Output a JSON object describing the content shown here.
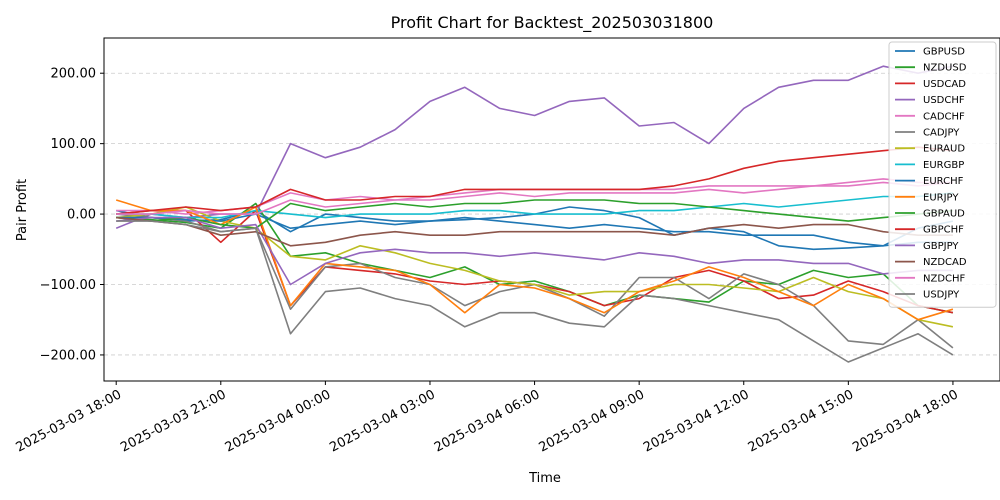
{
  "chart_data": {
    "type": "line",
    "title": "Profit Chart for Backtest_202503031800",
    "xlabel": "Time",
    "ylabel": "Pair Profit",
    "ylim": [
      -237,
      250
    ],
    "yticks": [
      -200,
      -100,
      0,
      100,
      200
    ],
    "ytick_labels": [
      "−200.00",
      "−100.00",
      "0.00",
      "100.00",
      "200.00"
    ],
    "xlim": [
      -0.35,
      25.35
    ],
    "xticks": [
      0,
      3,
      6,
      9,
      12,
      15,
      18,
      21,
      24
    ],
    "xtick_labels": [
      "2025-03-03 18:00",
      "2025-03-03 21:00",
      "2025-03-04 00:00",
      "2025-03-04 03:00",
      "2025-03-04 06:00",
      "2025-03-04 09:00",
      "2025-03-04 12:00",
      "2025-03-04 15:00",
      "2025-03-04 18:00"
    ],
    "x_unit": "hours since 2025-03-03 18:00",
    "grid": "y-dashed",
    "legend_position": "top-right",
    "x": [
      0,
      1,
      2,
      3,
      4,
      5,
      6,
      7,
      8,
      9,
      10,
      11,
      12,
      13,
      14,
      15,
      16,
      17,
      18,
      19,
      20,
      21,
      22,
      23,
      24
    ],
    "series": [
      {
        "name": "GBPUSD",
        "color": "#1f77b4",
        "values": [
          5,
          -5,
          -10,
          -8,
          5,
          -25,
          0,
          -5,
          -10,
          -10,
          -8,
          -5,
          0,
          10,
          5,
          -5,
          -30,
          -20,
          -25,
          -45,
          -50,
          -48,
          -45,
          -20,
          -10
        ]
      },
      {
        "name": "NZDUSD",
        "color": "#2ca02c",
        "values": [
          -5,
          -8,
          -12,
          -20,
          15,
          -60,
          -55,
          -70,
          -80,
          -90,
          -75,
          -100,
          -95,
          -110,
          -130,
          -115,
          -120,
          -125,
          -95,
          -100,
          -80,
          -90,
          -85,
          -130,
          -140
        ]
      },
      {
        "name": "USDCAD",
        "color": "#d62728",
        "values": [
          0,
          5,
          5,
          -40,
          5,
          -130,
          -75,
          -80,
          -85,
          -95,
          -100,
          -95,
          -100,
          -110,
          -130,
          -120,
          -90,
          -80,
          -95,
          -120,
          -115,
          -95,
          -110,
          -130,
          -140
        ]
      },
      {
        "name": "USDCHF",
        "color": "#9467bd",
        "values": [
          -20,
          0,
          -5,
          0,
          0,
          100,
          80,
          95,
          120,
          160,
          180,
          150,
          140,
          160,
          165,
          125,
          130,
          100,
          150,
          180,
          190,
          190,
          210,
          200,
          210
        ]
      },
      {
        "name": "CADCHF",
        "color": "#e377c2",
        "values": [
          5,
          5,
          0,
          5,
          10,
          30,
          20,
          25,
          20,
          25,
          30,
          35,
          35,
          35,
          35,
          35,
          35,
          40,
          40,
          40,
          40,
          45,
          50,
          45,
          45
        ]
      },
      {
        "name": "CADJPY",
        "color": "#7f7f7f",
        "values": [
          0,
          -5,
          -10,
          -25,
          -20,
          -135,
          -75,
          -70,
          -90,
          -100,
          -130,
          -110,
          -100,
          -120,
          -145,
          -90,
          -90,
          -120,
          -85,
          -100,
          -130,
          -180,
          -185,
          -150,
          -190
        ]
      },
      {
        "name": "EURAUD",
        "color": "#bcbd22",
        "values": [
          -5,
          0,
          10,
          -10,
          -20,
          -60,
          -65,
          -45,
          -55,
          -70,
          -80,
          -95,
          -100,
          -115,
          -110,
          -110,
          -100,
          -100,
          -105,
          -110,
          -90,
          -110,
          -120,
          -150,
          -160
        ]
      },
      {
        "name": "EURGBP",
        "color": "#17becf",
        "values": [
          0,
          0,
          -5,
          -5,
          5,
          0,
          -5,
          0,
          0,
          0,
          5,
          5,
          0,
          0,
          0,
          5,
          5,
          10,
          15,
          10,
          15,
          20,
          25,
          25,
          30
        ]
      },
      {
        "name": "EURCHF",
        "color": "#1f77b4",
        "values": [
          -5,
          -5,
          -8,
          -10,
          0,
          -20,
          -15,
          -10,
          -15,
          -10,
          -5,
          -10,
          -15,
          -20,
          -15,
          -20,
          -25,
          -25,
          -30,
          -30,
          -30,
          -40,
          -45,
          -40,
          -40
        ]
      },
      {
        "name": "EURJPY",
        "color": "#ff7f0e",
        "values": [
          20,
          5,
          5,
          -15,
          10,
          -130,
          -70,
          -75,
          -80,
          -100,
          -140,
          -100,
          -105,
          -120,
          -140,
          -110,
          -95,
          -75,
          -90,
          -110,
          -130,
          -100,
          -120,
          -150,
          -135
        ]
      },
      {
        "name": "GBPAUD",
        "color": "#2ca02c",
        "values": [
          -5,
          -10,
          -5,
          -15,
          -20,
          15,
          5,
          10,
          15,
          10,
          15,
          15,
          20,
          20,
          20,
          15,
          15,
          10,
          5,
          0,
          -5,
          -10,
          -5,
          0,
          5
        ]
      },
      {
        "name": "GBPCHF",
        "color": "#d62728",
        "values": [
          0,
          5,
          10,
          5,
          10,
          35,
          20,
          20,
          25,
          25,
          35,
          35,
          35,
          35,
          35,
          35,
          40,
          50,
          65,
          75,
          80,
          85,
          90,
          95,
          90
        ]
      },
      {
        "name": "GBPJPY",
        "color": "#9467bd",
        "values": [
          -10,
          -5,
          -5,
          -20,
          -15,
          -100,
          -70,
          -55,
          -50,
          -55,
          -55,
          -60,
          -55,
          -60,
          -65,
          -55,
          -60,
          -70,
          -65,
          -65,
          -70,
          -70,
          -85,
          -80,
          -80
        ]
      },
      {
        "name": "NZDCAD",
        "color": "#8c564b",
        "values": [
          -5,
          -10,
          -15,
          -30,
          -25,
          -45,
          -40,
          -30,
          -25,
          -30,
          -30,
          -25,
          -25,
          -25,
          -25,
          -25,
          -30,
          -20,
          -15,
          -20,
          -15,
          -15,
          -25,
          -30,
          -30
        ]
      },
      {
        "name": "NZDCHF",
        "color": "#e377c2",
        "values": [
          0,
          0,
          5,
          0,
          0,
          20,
          10,
          15,
          20,
          20,
          25,
          30,
          25,
          30,
          30,
          30,
          30,
          35,
          30,
          35,
          40,
          40,
          45,
          40,
          45
        ]
      },
      {
        "name": "USDJPY",
        "color": "#7f7f7f",
        "values": [
          -10,
          -10,
          -15,
          -25,
          -20,
          -170,
          -110,
          -105,
          -120,
          -130,
          -160,
          -140,
          -140,
          -155,
          -160,
          -115,
          -120,
          -130,
          -140,
          -150,
          -180,
          -210,
          -190,
          -170,
          -200
        ]
      }
    ]
  }
}
